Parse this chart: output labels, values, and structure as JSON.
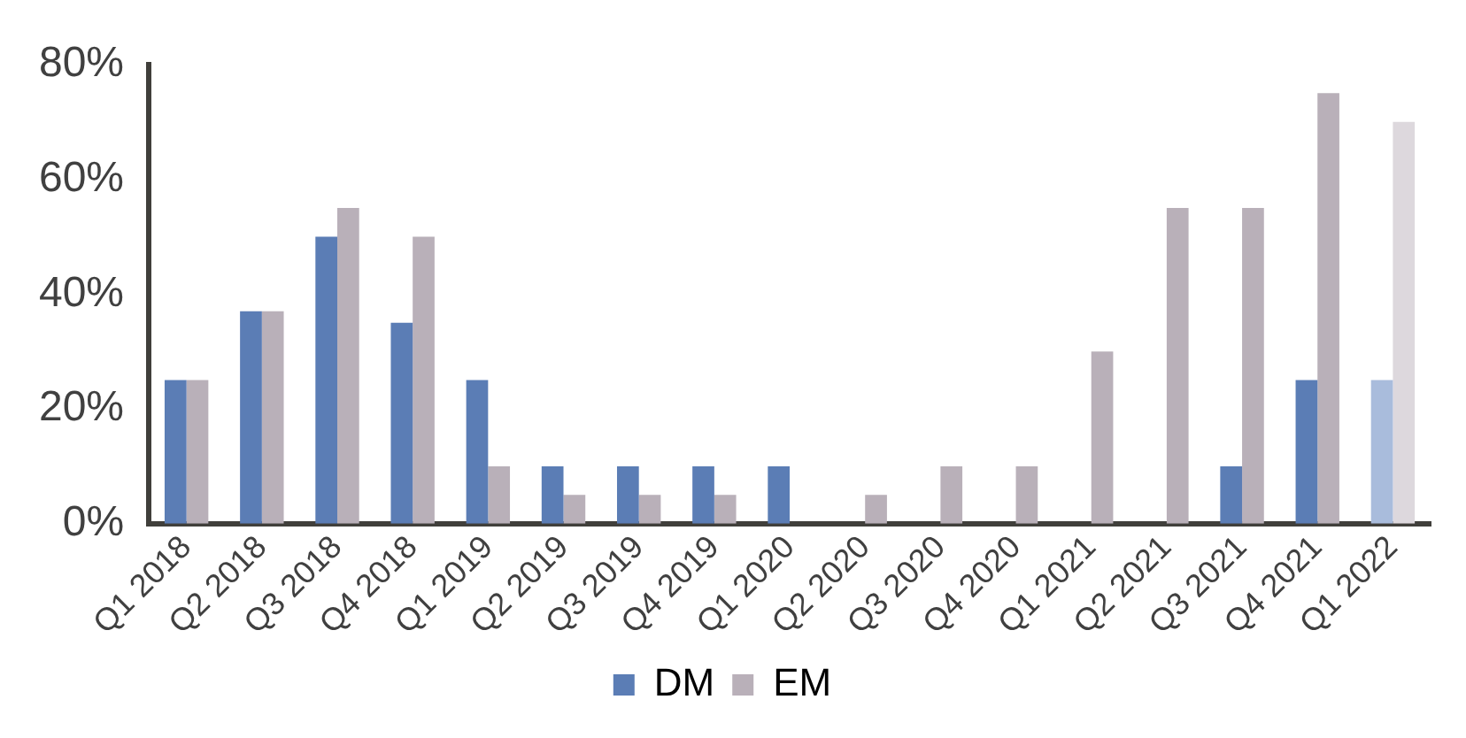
{
  "chart_data": {
    "type": "bar",
    "categories": [
      "Q1 2018",
      "Q2 2018",
      "Q3 2018",
      "Q4 2018",
      "Q1 2019",
      "Q2 2019",
      "Q3 2019",
      "Q4 2019",
      "Q1 2020",
      "Q2 2020",
      "Q3 2020",
      "Q4 2020",
      "Q1 2021",
      "Q2 2021",
      "Q3 2021",
      "Q4 2021",
      "Q1 2022"
    ],
    "series": [
      {
        "name": "DM",
        "color": "#5b7db5",
        "colors": [
          "#5b7db5",
          "#5b7db5",
          "#5b7db5",
          "#5b7db5",
          "#5b7db5",
          "#5b7db5",
          "#5b7db5",
          "#5b7db5",
          "#5b7db5",
          "#5b7db5",
          "#5b7db5",
          "#5b7db5",
          "#5b7db5",
          "#5b7db5",
          "#5b7db5",
          "#5b7db5",
          "#a9bcdc"
        ],
        "values": [
          25,
          37,
          50,
          35,
          25,
          10,
          10,
          10,
          10,
          0,
          0,
          0,
          0,
          0,
          10,
          25,
          25
        ]
      },
      {
        "name": "EM",
        "color": "#b9b0b9",
        "colors": [
          "#b9b0b9",
          "#b9b0b9",
          "#b9b0b9",
          "#b9b0b9",
          "#b9b0b9",
          "#b9b0b9",
          "#b9b0b9",
          "#b9b0b9",
          "#b9b0b9",
          "#b9b0b9",
          "#b9b0b9",
          "#b9b0b9",
          "#b9b0b9",
          "#b9b0b9",
          "#b9b0b9",
          "#b9b0b9",
          "#ddd8dd"
        ],
        "values": [
          25,
          37,
          55,
          50,
          10,
          5,
          5,
          5,
          0,
          5,
          10,
          10,
          30,
          55,
          55,
          75,
          70
        ]
      }
    ],
    "ylim": [
      0,
      80
    ],
    "yticks": [
      {
        "value": 0,
        "label": "0%"
      },
      {
        "value": 20,
        "label": "20%"
      },
      {
        "value": 40,
        "label": "40%"
      },
      {
        "value": 60,
        "label": "60%"
      },
      {
        "value": 80,
        "label": "80%"
      }
    ],
    "grid": false,
    "legend": "bottom"
  }
}
